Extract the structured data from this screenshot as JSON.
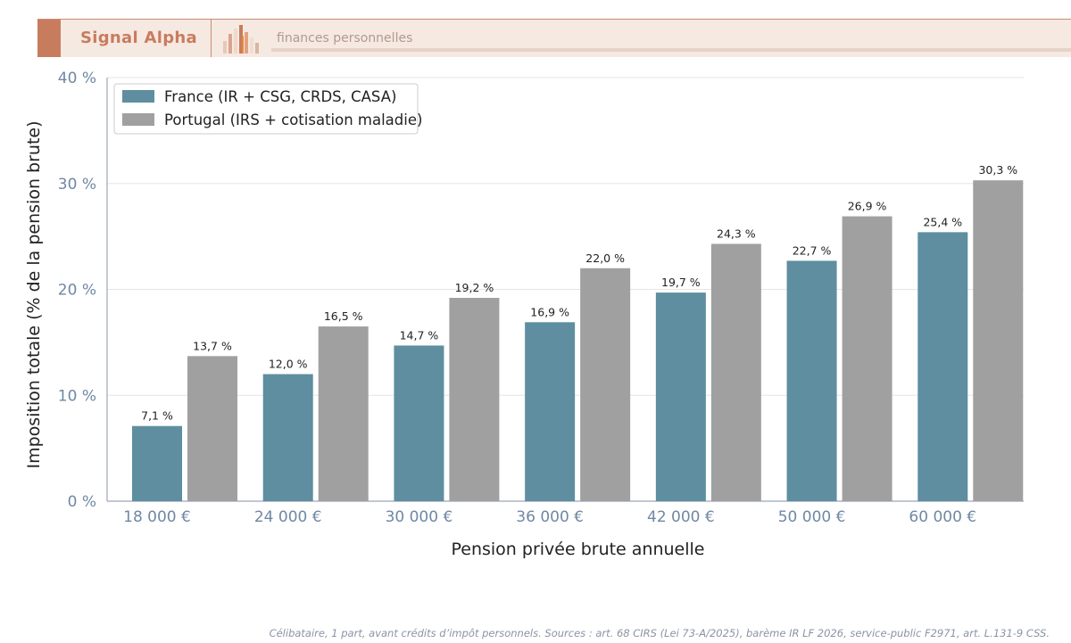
{
  "header": {
    "brand": "Signal Alpha",
    "tagline": "finances personnelles"
  },
  "colors": {
    "france": "#5e8ea0",
    "portugal": "#a0a0a0",
    "axis_text": "#6f88a3",
    "brand": "#c87c5e"
  },
  "footnote": "Célibataire, 1 part, avant crédits d’impôt personnels. Sources : art. 68 CIRS (Lei 73-A/2025), barème IR LF 2026, service-public F2971, art. L.131-9 CSS.",
  "chart_data": {
    "type": "bar",
    "xlabel": "Pension privée brute annuelle",
    "ylabel": "Imposition totale (% de la pension brute)",
    "categories": [
      "18 000 €",
      "24 000 €",
      "30 000 €",
      "36 000 €",
      "42 000 €",
      "50 000 €",
      "60 000 €"
    ],
    "series": [
      {
        "name": "France (IR + CSG, CRDS, CASA)",
        "values": [
          7.1,
          12.0,
          14.7,
          16.9,
          19.7,
          22.7,
          25.4
        ],
        "labels": [
          "7,1 %",
          "12,0 %",
          "14,7 %",
          "16,9 %",
          "19,7 %",
          "22,7 %",
          "25,4 %"
        ]
      },
      {
        "name": "Portugal (IRS + cotisation maladie)",
        "values": [
          13.7,
          16.5,
          19.2,
          22.0,
          24.3,
          26.9,
          30.3
        ],
        "labels": [
          "13,7 %",
          "16,5 %",
          "19,2 %",
          "22,0 %",
          "24,3 %",
          "26,9 %",
          "30,3 %"
        ]
      }
    ],
    "ylim": [
      0,
      40
    ],
    "yticks": [
      0,
      10,
      20,
      30,
      40
    ],
    "ytick_labels": [
      "0 %",
      "10 %",
      "20 %",
      "30 %",
      "40 %"
    ],
    "grid": true,
    "legend_position": "top-left"
  }
}
